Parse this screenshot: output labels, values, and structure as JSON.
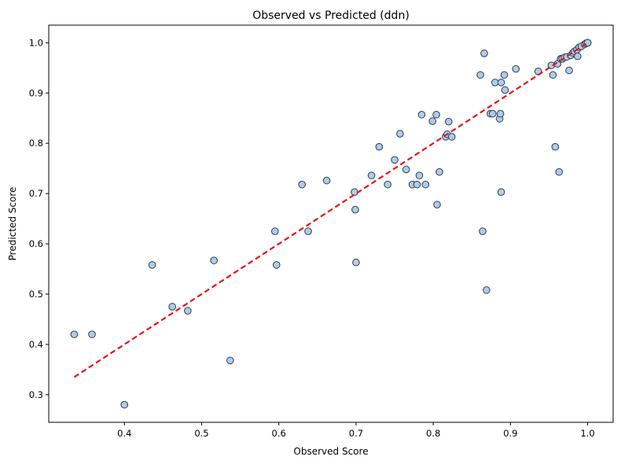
{
  "chart_data": {
    "type": "scatter",
    "title": "Observed vs Predicted (ddn)",
    "xlabel": "Observed Score",
    "ylabel": "Predicted Score",
    "xlim": [
      0.302,
      1.033
    ],
    "ylim": [
      0.245,
      1.035
    ],
    "xticks": [
      "0.4",
      "0.5",
      "0.6",
      "0.7",
      "0.8",
      "0.9",
      "1.0"
    ],
    "yticks": [
      "0.3",
      "0.4",
      "0.5",
      "0.6",
      "0.7",
      "0.8",
      "0.9",
      "1.0"
    ],
    "grid": false,
    "legend": "none",
    "point_fill": "#b0cce8",
    "point_edge": "#2c3e50",
    "line_color": "#e8141a",
    "reference_line": {
      "x": [
        0.335,
        1.0
      ],
      "y": [
        0.335,
        1.0
      ],
      "style": "dashed"
    },
    "points": [
      [
        0.335,
        0.42
      ],
      [
        0.358,
        0.42
      ],
      [
        0.4,
        0.28
      ],
      [
        0.436,
        0.558
      ],
      [
        0.462,
        0.475
      ],
      [
        0.482,
        0.467
      ],
      [
        0.516,
        0.567
      ],
      [
        0.537,
        0.368
      ],
      [
        0.595,
        0.625
      ],
      [
        0.597,
        0.558
      ],
      [
        0.63,
        0.718
      ],
      [
        0.638,
        0.625
      ],
      [
        0.662,
        0.726
      ],
      [
        0.698,
        0.703
      ],
      [
        0.699,
        0.668
      ],
      [
        0.7,
        0.563
      ],
      [
        0.72,
        0.736
      ],
      [
        0.73,
        0.793
      ],
      [
        0.741,
        0.718
      ],
      [
        0.75,
        0.767
      ],
      [
        0.757,
        0.819
      ],
      [
        0.765,
        0.748
      ],
      [
        0.773,
        0.718
      ],
      [
        0.779,
        0.718
      ],
      [
        0.782,
        0.736
      ],
      [
        0.785,
        0.857
      ],
      [
        0.79,
        0.718
      ],
      [
        0.799,
        0.844
      ],
      [
        0.804,
        0.857
      ],
      [
        0.805,
        0.678
      ],
      [
        0.808,
        0.743
      ],
      [
        0.816,
        0.813
      ],
      [
        0.818,
        0.818
      ],
      [
        0.82,
        0.843
      ],
      [
        0.824,
        0.813
      ],
      [
        0.861,
        0.936
      ],
      [
        0.864,
        0.625
      ],
      [
        0.866,
        0.979
      ],
      [
        0.869,
        0.508
      ],
      [
        0.874,
        0.859
      ],
      [
        0.877,
        0.859
      ],
      [
        0.88,
        0.921
      ],
      [
        0.886,
        0.849
      ],
      [
        0.887,
        0.859
      ],
      [
        0.888,
        0.921
      ],
      [
        0.888,
        0.703
      ],
      [
        0.892,
        0.936
      ],
      [
        0.893,
        0.906
      ],
      [
        0.907,
        0.948
      ],
      [
        0.936,
        0.943
      ],
      [
        0.953,
        0.955
      ],
      [
        0.955,
        0.936
      ],
      [
        0.958,
        0.793
      ],
      [
        0.961,
        0.958
      ],
      [
        0.963,
        0.743
      ],
      [
        0.965,
        0.968
      ],
      [
        0.967,
        0.968
      ],
      [
        0.97,
        0.971
      ],
      [
        0.973,
        0.972
      ],
      [
        0.976,
        0.945
      ],
      [
        0.978,
        0.975
      ],
      [
        0.981,
        0.98
      ],
      [
        0.983,
        0.983
      ],
      [
        0.986,
        0.986
      ],
      [
        0.987,
        0.973
      ],
      [
        0.989,
        0.991
      ],
      [
        0.992,
        0.993
      ],
      [
        0.996,
        0.997
      ],
      [
        0.998,
        0.999
      ],
      [
        1.0,
        1.0
      ],
      [
        1.0,
        1.0
      ],
      [
        1.0,
        1.0
      ]
    ]
  }
}
